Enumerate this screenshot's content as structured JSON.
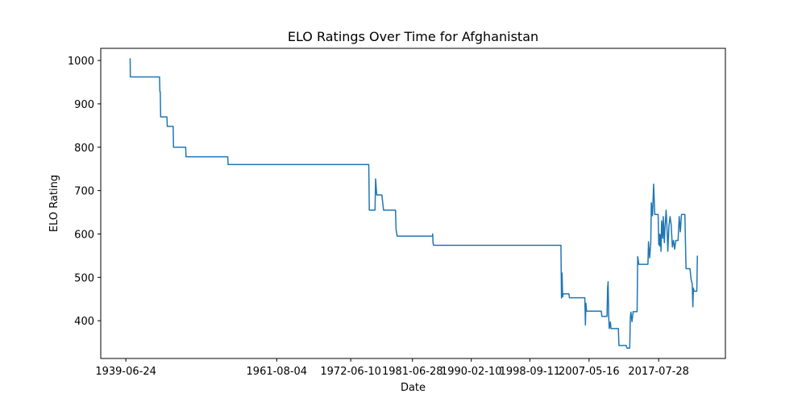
{
  "chart_data": {
    "type": "line",
    "title": "ELO Ratings Over Time for Afghanistan",
    "xlabel": "Date",
    "ylabel": "ELO Rating",
    "xlim": [
      "1935-10-20",
      "2027-05-10"
    ],
    "ylim": [
      313,
      1028
    ],
    "xticks": [
      {
        "date": "1939-06-24",
        "label": "1939-06-24"
      },
      {
        "date": "1961-08-04",
        "label": "1961-08-04"
      },
      {
        "date": "1972-06-10",
        "label": "1972-06-10"
      },
      {
        "date": "1981-06-28",
        "label": "1981-06-28"
      },
      {
        "date": "1990-02-10",
        "label": "1990-02-10"
      },
      {
        "date": "1998-09-11",
        "label": "1998-09-11"
      },
      {
        "date": "2007-05-16",
        "label": "2007-05-16"
      },
      {
        "date": "2017-07-28",
        "label": "2017-07-28"
      }
    ],
    "yticks": [
      400,
      500,
      600,
      700,
      800,
      900,
      1000
    ],
    "grid": false,
    "series": [
      {
        "color": "#1f77b4",
        "points": [
          [
            "1940-02-10",
            1005
          ],
          [
            "1940-02-20",
            962
          ],
          [
            "1941-08-01",
            962
          ],
          [
            "1941-08-20",
            962
          ],
          [
            "1944-06-01",
            962
          ],
          [
            "1944-06-20",
            928
          ],
          [
            "1944-07-10",
            928
          ],
          [
            "1944-08-01",
            870
          ],
          [
            "1945-07-01",
            870
          ],
          [
            "1945-07-20",
            848
          ],
          [
            "1946-06-01",
            848
          ],
          [
            "1946-06-20",
            800
          ],
          [
            "1948-04-01",
            800
          ],
          [
            "1948-04-20",
            778
          ],
          [
            "1954-06-01",
            778
          ],
          [
            "1954-06-20",
            760
          ],
          [
            "1970-01-01",
            760
          ],
          [
            "1975-02-01",
            760
          ],
          [
            "1975-03-01",
            655
          ],
          [
            "1976-01-01",
            655
          ],
          [
            "1976-02-01",
            727
          ],
          [
            "1976-04-01",
            690
          ],
          [
            "1977-01-01",
            690
          ],
          [
            "1977-04-01",
            655
          ],
          [
            "1979-01-01",
            655
          ],
          [
            "1979-02-01",
            610
          ],
          [
            "1979-04-01",
            595
          ],
          [
            "1984-01-01",
            595
          ],
          [
            "1984-06-01",
            595
          ],
          [
            "1984-06-15",
            600
          ],
          [
            "1984-07-01",
            580
          ],
          [
            "1984-08-01",
            574
          ],
          [
            "1994-01-01",
            574
          ],
          [
            "2001-01-01",
            574
          ],
          [
            "2003-04-01",
            574
          ],
          [
            "2003-05-01",
            452
          ],
          [
            "2003-06-01",
            510
          ],
          [
            "2003-07-01",
            455
          ],
          [
            "2003-08-01",
            462
          ],
          [
            "2004-06-01",
            462
          ],
          [
            "2004-07-01",
            453
          ],
          [
            "2006-01-01",
            453
          ],
          [
            "2006-10-01",
            453
          ],
          [
            "2006-11-01",
            390
          ],
          [
            "2006-12-01",
            440
          ],
          [
            "2007-01-01",
            422
          ],
          [
            "2008-09-01",
            422
          ],
          [
            "2009-03-01",
            422
          ],
          [
            "2009-04-01",
            410
          ],
          [
            "2010-01-01",
            410
          ],
          [
            "2010-02-01",
            475
          ],
          [
            "2010-03-01",
            490
          ],
          [
            "2010-04-01",
            410
          ],
          [
            "2010-05-01",
            382
          ],
          [
            "2010-07-01",
            397
          ],
          [
            "2010-08-01",
            382
          ],
          [
            "2011-09-01",
            382
          ],
          [
            "2011-10-01",
            343
          ],
          [
            "2012-11-01",
            343
          ],
          [
            "2012-12-01",
            337
          ],
          [
            "2013-05-01",
            337
          ],
          [
            "2013-06-01",
            405
          ],
          [
            "2013-07-01",
            420
          ],
          [
            "2013-09-01",
            398
          ],
          [
            "2013-11-01",
            421
          ],
          [
            "2014-06-01",
            421
          ],
          [
            "2014-07-01",
            548
          ],
          [
            "2014-09-01",
            530
          ],
          [
            "2015-11-01",
            530
          ],
          [
            "2016-01-01",
            530
          ],
          [
            "2016-02-01",
            582
          ],
          [
            "2016-04-01",
            545
          ],
          [
            "2016-06-01",
            580
          ],
          [
            "2016-07-01",
            672
          ],
          [
            "2016-09-01",
            642
          ],
          [
            "2016-11-01",
            715
          ],
          [
            "2017-01-01",
            645
          ],
          [
            "2017-07-01",
            645
          ],
          [
            "2017-08-01",
            575
          ],
          [
            "2017-09-01",
            600
          ],
          [
            "2017-10-01",
            572
          ],
          [
            "2017-11-01",
            598
          ],
          [
            "2017-12-01",
            560
          ],
          [
            "2018-01-01",
            630
          ],
          [
            "2018-03-01",
            590
          ],
          [
            "2018-04-01",
            640
          ],
          [
            "2018-05-01",
            605
          ],
          [
            "2018-06-01",
            580
          ],
          [
            "2018-07-01",
            615
          ],
          [
            "2018-09-01",
            655
          ],
          [
            "2018-11-01",
            600
          ],
          [
            "2018-12-01",
            560
          ],
          [
            "2019-02-01",
            620
          ],
          [
            "2019-04-01",
            640
          ],
          [
            "2019-06-01",
            620
          ],
          [
            "2019-08-01",
            570
          ],
          [
            "2019-10-01",
            585
          ],
          [
            "2019-12-01",
            565
          ],
          [
            "2020-02-01",
            585
          ],
          [
            "2020-06-01",
            585
          ],
          [
            "2020-08-01",
            640
          ],
          [
            "2020-10-01",
            605
          ],
          [
            "2020-12-01",
            645
          ],
          [
            "2021-06-01",
            645
          ],
          [
            "2021-08-01",
            520
          ],
          [
            "2022-03-01",
            520
          ],
          [
            "2022-05-01",
            495
          ],
          [
            "2022-07-01",
            485
          ],
          [
            "2022-08-01",
            432
          ],
          [
            "2022-09-01",
            475
          ],
          [
            "2022-10-01",
            468
          ],
          [
            "2023-03-01",
            468
          ],
          [
            "2023-04-01",
            550
          ]
        ]
      }
    ]
  }
}
